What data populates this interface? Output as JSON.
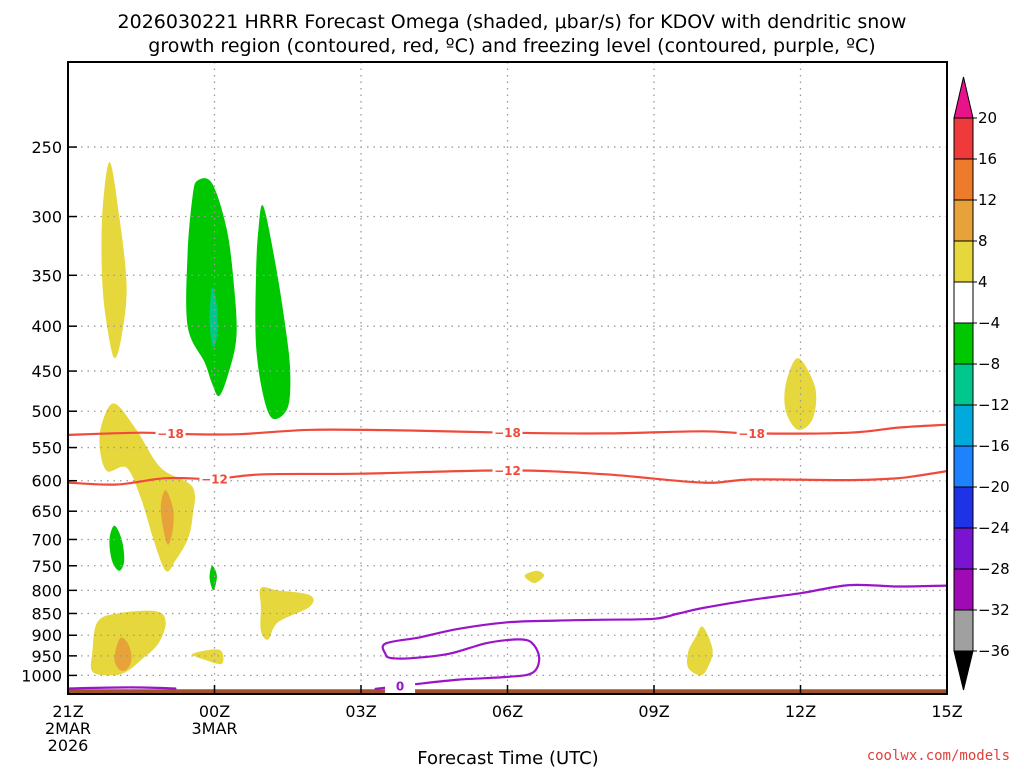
{
  "title": {
    "line1": "2026030221 HRRR Forecast Omega (shaded, μbar/s) for KDOV with dendritic snow",
    "line2": "growth region (contoured, red, ºC) and freezing level (contoured, purple, ºC)"
  },
  "watermark": "coolwx.com/models",
  "colors": {
    "dgz_contour": "#f04a3c",
    "freezing_contour": "#9a14c8",
    "ground": "#a0522d",
    "grid": "#9a9a9a"
  },
  "chart_data": {
    "type": "time-height cross section (shaded omega with contours)",
    "xlabel": "Forecast Time (UTC)",
    "x_range_hours": [
      0,
      18
    ],
    "x_ticks": [
      {
        "hour": 0,
        "lines": [
          "21Z",
          "2MAR",
          "2026"
        ]
      },
      {
        "hour": 3,
        "lines": [
          "00Z",
          "3MAR"
        ]
      },
      {
        "hour": 6,
        "lines": [
          "03Z"
        ]
      },
      {
        "hour": 9,
        "lines": [
          "06Z"
        ]
      },
      {
        "hour": 12,
        "lines": [
          "09Z"
        ]
      },
      {
        "hour": 15,
        "lines": [
          "12Z"
        ]
      },
      {
        "hour": 18,
        "lines": [
          "15Z"
        ]
      }
    ],
    "y_axis": "pressure (hPa), log scale, inverted",
    "y_range_hpa": [
      1050,
      200
    ],
    "y_ticks": [
      250,
      300,
      350,
      400,
      450,
      500,
      550,
      600,
      650,
      700,
      750,
      800,
      850,
      900,
      950,
      1000
    ],
    "grid": true,
    "colorbar": {
      "labels": [
        "20",
        "16",
        "12",
        "8",
        "4",
        "−4",
        "−8",
        "−12",
        "−16",
        "−20",
        "−24",
        "−28",
        "−32",
        "−36"
      ],
      "bins": [
        {
          "range": ">20",
          "color": "#e8128a",
          "triangle": true
        },
        {
          "range": "16 to 20",
          "color": "#ee3a3a"
        },
        {
          "range": "12 to 16",
          "color": "#ee7a2c"
        },
        {
          "range": "8 to 12",
          "color": "#e8a23a"
        },
        {
          "range": "4 to 8",
          "color": "#e6d83c"
        },
        {
          "range": "-4 to 4",
          "color": "#ffffff"
        },
        {
          "range": "-8 to -4",
          "color": "#00c800"
        },
        {
          "range": "-12 to -8",
          "color": "#00c88c"
        },
        {
          "range": "-16 to -12",
          "color": "#00aadc"
        },
        {
          "range": "-20 to -16",
          "color": "#1e82ff"
        },
        {
          "range": "-24 to -20",
          "color": "#1e32e6"
        },
        {
          "range": "-28 to -24",
          "color": "#7814d2"
        },
        {
          "range": "-32 to -28",
          "color": "#a00ab4"
        },
        {
          "range": "-36 to -32",
          "color": "#a0a0a0"
        },
        {
          "range": "<-36",
          "color": "#000000",
          "triangle": true
        }
      ]
    },
    "omega_regions": [
      {
        "name": "rising-upper-early",
        "omega_bin": "4 to 8",
        "outline": [
          [
            0.85,
            260
          ],
          [
            1.05,
            300
          ],
          [
            1.2,
            360
          ],
          [
            1.1,
            410
          ],
          [
            0.95,
            435
          ],
          [
            0.8,
            400
          ],
          [
            0.7,
            355
          ],
          [
            0.7,
            300
          ]
        ]
      },
      {
        "name": "sinking-upper-00z",
        "omega_bin": "-8 to -4",
        "outline": [
          [
            2.65,
            273
          ],
          [
            2.95,
            275
          ],
          [
            3.25,
            310
          ],
          [
            3.4,
            360
          ],
          [
            3.45,
            410
          ],
          [
            3.3,
            450
          ],
          [
            3.1,
            480
          ],
          [
            2.95,
            465
          ],
          [
            2.8,
            440
          ],
          [
            2.45,
            400
          ],
          [
            2.45,
            330
          ],
          [
            2.55,
            285
          ]
        ]
      },
      {
        "name": "sinking-core-00z",
        "omega_bin": "-12 to -8",
        "outline": [
          [
            2.95,
            362
          ],
          [
            3.05,
            380
          ],
          [
            3.05,
            410
          ],
          [
            2.97,
            422
          ],
          [
            2.9,
            395
          ]
        ]
      },
      {
        "name": "sinking-upper-01z",
        "omega_bin": "-8 to -4",
        "outline": [
          [
            4.0,
            292
          ],
          [
            4.25,
            340
          ],
          [
            4.45,
            400
          ],
          [
            4.55,
            450
          ],
          [
            4.5,
            495
          ],
          [
            4.2,
            510
          ],
          [
            4.0,
            480
          ],
          [
            3.85,
            420
          ],
          [
            3.85,
            350
          ],
          [
            3.9,
            310
          ]
        ]
      },
      {
        "name": "rising-midlevel-early",
        "omega_bin": "4 to 8",
        "outline": [
          [
            0.95,
            490
          ],
          [
            1.4,
            525
          ],
          [
            1.9,
            580
          ],
          [
            2.55,
            610
          ],
          [
            2.55,
            660
          ],
          [
            2.45,
            700
          ],
          [
            2.2,
            740
          ],
          [
            2.0,
            760
          ],
          [
            1.75,
            700
          ],
          [
            1.5,
            630
          ],
          [
            1.2,
            580
          ],
          [
            0.8,
            585
          ],
          [
            0.65,
            550
          ],
          [
            0.7,
            515
          ]
        ]
      },
      {
        "name": "rising-midlevel-core",
        "omega_bin": "8 to 12",
        "outline": [
          [
            2.0,
            615
          ],
          [
            2.15,
            645
          ],
          [
            2.15,
            680
          ],
          [
            2.05,
            710
          ],
          [
            1.95,
            680
          ],
          [
            1.9,
            640
          ]
        ]
      },
      {
        "name": "sinking-lowlevel-early",
        "omega_bin": "-8 to -4",
        "outline": [
          [
            0.95,
            675
          ],
          [
            1.1,
            700
          ],
          [
            1.15,
            740
          ],
          [
            1.05,
            760
          ],
          [
            0.9,
            740
          ],
          [
            0.85,
            700
          ]
        ]
      },
      {
        "name": "sinking-lowlevel-00z",
        "omega_bin": "-8 to -4",
        "outline": [
          [
            2.95,
            750
          ],
          [
            3.05,
            770
          ],
          [
            2.98,
            800
          ],
          [
            2.9,
            775
          ]
        ]
      },
      {
        "name": "rising-boundary-early",
        "omega_bin": "4 to 8",
        "outline": [
          [
            0.6,
            870
          ],
          [
            1.0,
            850
          ],
          [
            1.8,
            845
          ],
          [
            2.0,
            870
          ],
          [
            1.85,
            920
          ],
          [
            1.5,
            960
          ],
          [
            1.2,
            990
          ],
          [
            0.9,
            1000
          ],
          [
            0.5,
            990
          ],
          [
            0.5,
            940
          ]
        ]
      },
      {
        "name": "rising-boundary-core",
        "omega_bin": "8 to 12",
        "outline": [
          [
            1.1,
            905
          ],
          [
            1.25,
            925
          ],
          [
            1.3,
            960
          ],
          [
            1.2,
            985
          ],
          [
            1.05,
            985
          ],
          [
            0.95,
            960
          ],
          [
            1.0,
            925
          ]
        ]
      },
      {
        "name": "rising-lowlevel-00z",
        "omega_bin": "4 to 8",
        "outline": [
          [
            2.55,
            945
          ],
          [
            3.1,
            935
          ],
          [
            3.15,
            970
          ],
          [
            2.8,
            960
          ]
        ]
      },
      {
        "name": "rising-lowlevel-01z",
        "omega_bin": "4 to 8",
        "outline": [
          [
            3.95,
            795
          ],
          [
            4.3,
            800
          ],
          [
            4.95,
            810
          ],
          [
            4.95,
            835
          ],
          [
            4.3,
            870
          ],
          [
            4.1,
            910
          ],
          [
            3.95,
            890
          ],
          [
            3.95,
            835
          ]
        ]
      },
      {
        "name": "rising-lowlevel-04z",
        "omega_bin": "4 to 8",
        "outline": [
          [
            9.6,
            760
          ],
          [
            9.75,
            770
          ],
          [
            9.55,
            785
          ],
          [
            9.35,
            770
          ]
        ]
      },
      {
        "name": "rising-upper-12z",
        "omega_bin": "4 to 8",
        "outline": [
          [
            14.95,
            435
          ],
          [
            15.3,
            470
          ],
          [
            15.25,
            510
          ],
          [
            14.95,
            525
          ],
          [
            14.7,
            500
          ],
          [
            14.7,
            465
          ]
        ]
      },
      {
        "name": "rising-lowlevel-10z",
        "omega_bin": "4 to 8",
        "outline": [
          [
            13.0,
            880
          ],
          [
            13.2,
            935
          ],
          [
            13.1,
            980
          ],
          [
            12.95,
            1000
          ],
          [
            12.7,
            980
          ],
          [
            12.7,
            940
          ],
          [
            12.85,
            905
          ]
        ]
      }
    ],
    "contours": [
      {
        "name": "isotherm-minus18",
        "label": "−18",
        "color": "#f04a3c",
        "points": [
          [
            0,
            532
          ],
          [
            1.5,
            529
          ],
          [
            2.5,
            531
          ],
          [
            3.5,
            531
          ],
          [
            5,
            525
          ],
          [
            7,
            526
          ],
          [
            9,
            529
          ],
          [
            11,
            530
          ],
          [
            13,
            527
          ],
          [
            14,
            530
          ],
          [
            16,
            529
          ],
          [
            17,
            522
          ],
          [
            18,
            518
          ]
        ],
        "label_hours": [
          2.1,
          9.0,
          14.0
        ]
      },
      {
        "name": "isotherm-minus12",
        "label": "−12",
        "color": "#f04a3c",
        "points": [
          [
            0,
            603
          ],
          [
            1,
            606
          ],
          [
            2,
            596
          ],
          [
            3,
            597
          ],
          [
            4,
            590
          ],
          [
            6,
            589
          ],
          [
            9,
            584
          ],
          [
            11,
            590
          ],
          [
            13,
            603
          ],
          [
            14,
            598
          ],
          [
            16,
            599
          ],
          [
            17,
            596
          ],
          [
            17.5,
            591
          ],
          [
            18,
            585
          ]
        ],
        "label_hours": [
          3.0,
          9.0
        ]
      },
      {
        "name": "freezing-level-main",
        "label": "0",
        "color": "#9a14c8",
        "points": [
          [
            6.3,
            1036
          ],
          [
            7,
            1025
          ],
          [
            8,
            1011
          ],
          [
            9,
            1004
          ],
          [
            9.5,
            994
          ],
          [
            9.65,
            960
          ],
          [
            9.55,
            925
          ],
          [
            9.3,
            910
          ],
          [
            8.6,
            918
          ],
          [
            7.8,
            945
          ],
          [
            7,
            956
          ],
          [
            6.6,
            955
          ],
          [
            6.5,
            945
          ],
          [
            6.5,
            920
          ],
          [
            7.2,
            905
          ],
          [
            8,
            885
          ],
          [
            9,
            870
          ],
          [
            10,
            866
          ],
          [
            11,
            864
          ],
          [
            12,
            862
          ],
          [
            12.5,
            850
          ],
          [
            13,
            838
          ],
          [
            14,
            820
          ],
          [
            15,
            806
          ],
          [
            16,
            789
          ],
          [
            17,
            792
          ],
          [
            18,
            790
          ]
        ],
        "label_hours": [
          6.8
        ]
      },
      {
        "name": "freezing-level-surface",
        "label": "",
        "color": "#9a14c8",
        "points": [
          [
            0,
            1035
          ],
          [
            1.3,
            1032
          ],
          [
            2.2,
            1035
          ]
        ],
        "label_hours": []
      }
    ],
    "ground_top_hpa": 1037
  }
}
